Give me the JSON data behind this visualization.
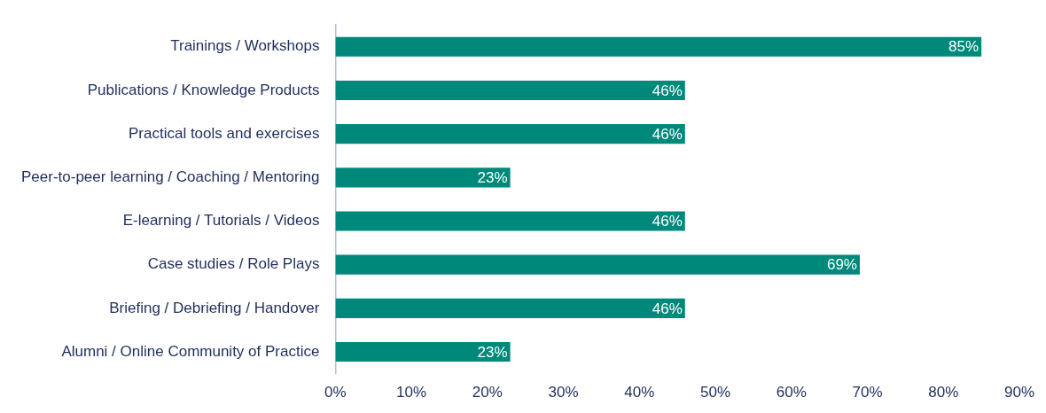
{
  "chart_data": {
    "type": "bar",
    "orientation": "horizontal",
    "categories": [
      "Trainings / Workshops",
      "Publications / Knowledge Products",
      "Practical tools and exercises",
      "Peer-to-peer learning / Coaching / Mentoring",
      "E-learning / Tutorials / Videos",
      "Case studies / Role Plays",
      "Briefing / Debriefing / Handover",
      "Alumni / Online Community of Practice"
    ],
    "values": [
      85,
      46,
      46,
      23,
      46,
      69,
      46,
      23
    ],
    "value_labels": [
      "85%",
      "46%",
      "46%",
      "23%",
      "46%",
      "69%",
      "46%",
      "23%"
    ],
    "color": "#00897b",
    "xlim": [
      0,
      90
    ],
    "xticks": [
      {
        "value": 0,
        "label": "0%"
      },
      {
        "value": 10,
        "label": "10%"
      },
      {
        "value": 20,
        "label": "20%"
      },
      {
        "value": 30,
        "label": "30%"
      },
      {
        "value": 40,
        "label": "40%"
      },
      {
        "value": 50,
        "label": "50%"
      },
      {
        "value": 60,
        "label": "60%"
      },
      {
        "value": 70,
        "label": "70%"
      },
      {
        "value": 80,
        "label": "80%"
      },
      {
        "value": 90,
        "label": "90%"
      }
    ],
    "grid": false,
    "legend": false
  }
}
